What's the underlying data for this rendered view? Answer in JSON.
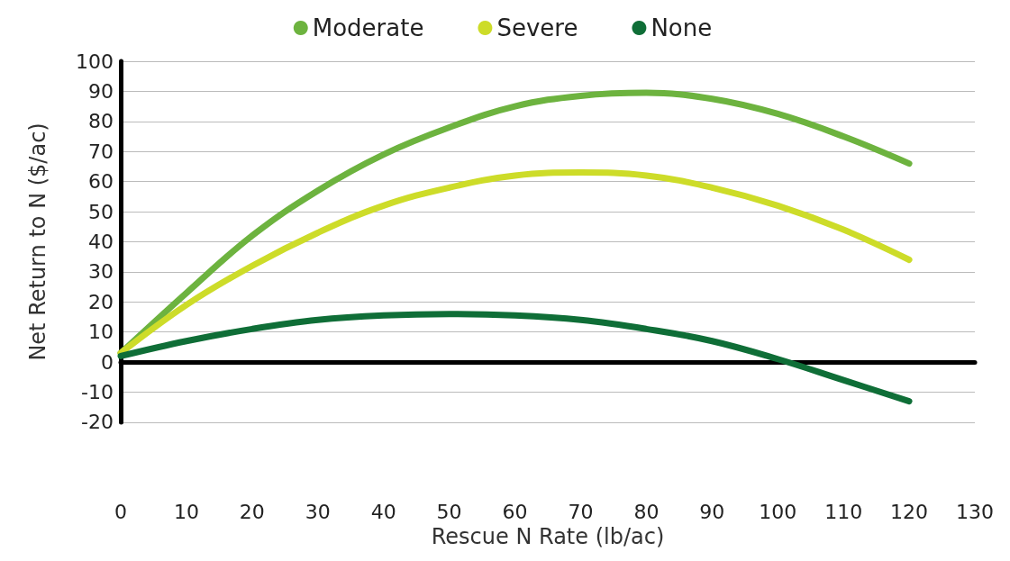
{
  "chart_data": {
    "type": "line",
    "xlabel": "Rescue N Rate (lb/ac)",
    "ylabel": "Net Return to N ($/ac)",
    "x": [
      0,
      10,
      20,
      30,
      40,
      50,
      60,
      70,
      80,
      90,
      100,
      110,
      120
    ],
    "series": [
      {
        "name": "Moderate",
        "color": "#6db33f",
        "values": [
          3,
          23,
          42,
          57,
          69,
          78,
          85,
          88.5,
          89.5,
          87.5,
          82.5,
          75,
          66
        ]
      },
      {
        "name": "Severe",
        "color": "#cddc29",
        "values": [
          3,
          19,
          32,
          43,
          52,
          58,
          62,
          63,
          62,
          58,
          52,
          44,
          34
        ]
      },
      {
        "name": "None",
        "color": "#0f6e37",
        "values": [
          2,
          7,
          11,
          14,
          15.5,
          16,
          15.5,
          14,
          11,
          7,
          1,
          -6,
          -13
        ]
      }
    ],
    "xlim": [
      0,
      130
    ],
    "xticks": [
      0,
      10,
      20,
      30,
      40,
      50,
      60,
      70,
      80,
      90,
      100,
      110,
      120,
      130
    ],
    "ylim": [
      -20,
      100
    ],
    "yticks": [
      -20,
      -10,
      0,
      10,
      20,
      30,
      40,
      50,
      60,
      70,
      80,
      90,
      100
    ],
    "grid": "y",
    "legend": "top",
    "marker": "none",
    "line_style": "solid"
  }
}
